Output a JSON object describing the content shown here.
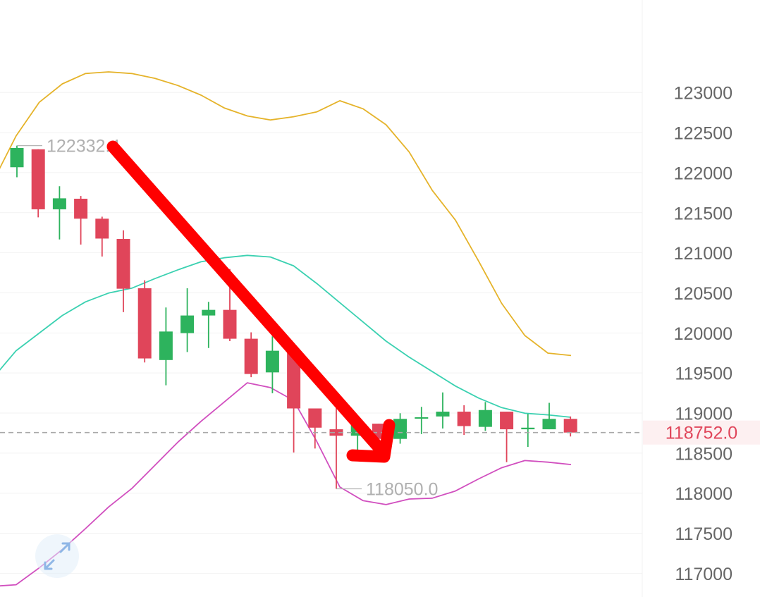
{
  "chart_data": {
    "type": "candlestick",
    "ylim": [
      116700,
      124150
    ],
    "y_ticks": [
      "123000",
      "122500",
      "122000",
      "121500",
      "121000",
      "120500",
      "120000",
      "119500",
      "119000",
      "118500",
      "118000",
      "117500",
      "117000"
    ],
    "grid": true,
    "current_price": {
      "value": 118752.0,
      "label": "118752.0"
    },
    "annotations": [
      {
        "label": "122332.4",
        "value": 122332.4,
        "candle_index": 0
      },
      {
        "label": "118050.0",
        "value": 118050.0,
        "candle_index": 15
      }
    ],
    "candles": [
      {
        "open": 122063,
        "high": 122332.4,
        "low": 121938,
        "close": 122303
      },
      {
        "open": 122287,
        "high": 122287,
        "low": 121438,
        "close": 121538
      },
      {
        "open": 121538,
        "high": 121826,
        "low": 121162,
        "close": 121675
      },
      {
        "open": 121670,
        "high": 121704,
        "low": 121098,
        "close": 121421
      },
      {
        "open": 121421,
        "high": 121446,
        "low": 120949,
        "close": 121173
      },
      {
        "open": 121168,
        "high": 121276,
        "low": 120255,
        "close": 120547
      },
      {
        "open": 120553,
        "high": 120653,
        "low": 119627,
        "close": 119677
      },
      {
        "open": 119657,
        "high": 120313,
        "low": 119342,
        "close": 120013
      },
      {
        "open": 119993,
        "high": 120553,
        "low": 119757,
        "close": 120213
      },
      {
        "open": 120213,
        "high": 120383,
        "low": 119807,
        "close": 120283
      },
      {
        "open": 120283,
        "high": 120793,
        "low": 119893,
        "close": 119923
      },
      {
        "open": 119923,
        "high": 120003,
        "low": 119443,
        "close": 119483
      },
      {
        "open": 119503,
        "high": 119953,
        "low": 119243,
        "close": 119773
      },
      {
        "open": 119773,
        "high": 119773,
        "low": 118503,
        "close": 119053
      },
      {
        "open": 119053,
        "high": 119053,
        "low": 118553,
        "close": 118813
      },
      {
        "open": 118793,
        "high": 119153,
        "low": 118050.0,
        "close": 118713
      },
      {
        "open": 118713,
        "high": 118893,
        "low": 118493,
        "close": 118853
      },
      {
        "open": 118863,
        "high": 118863,
        "low": 118673,
        "close": 118673
      },
      {
        "open": 118673,
        "high": 118993,
        "low": 118613,
        "close": 118923
      },
      {
        "open": 118943,
        "high": 119073,
        "low": 118733,
        "close": 118943
      },
      {
        "open": 118953,
        "high": 119253,
        "low": 118803,
        "close": 119013
      },
      {
        "open": 119013,
        "high": 119093,
        "low": 118723,
        "close": 118833
      },
      {
        "open": 118823,
        "high": 119133,
        "low": 118773,
        "close": 119033
      },
      {
        "open": 119013,
        "high": 119013,
        "low": 118383,
        "close": 118793
      },
      {
        "open": 118793,
        "high": 118983,
        "low": 118573,
        "close": 118813
      },
      {
        "open": 118793,
        "high": 119123,
        "low": 118793,
        "close": 118923
      },
      {
        "open": 118923,
        "high": 118953,
        "low": 118703,
        "close": 118752
      }
    ],
    "bands": {
      "upper": [
        121883,
        122453,
        122873,
        123103,
        123233,
        123253,
        123233,
        123173,
        123083,
        122963,
        122803,
        122703,
        122653,
        122693,
        122753,
        122893,
        122793,
        122593,
        122253,
        121773,
        121403,
        120893,
        120363,
        119963,
        119743,
        119713
      ],
      "middle": [
        119433,
        119773,
        119993,
        120213,
        120383,
        120493,
        120553,
        120673,
        120783,
        120883,
        120933,
        120963,
        120943,
        120833,
        120613,
        120373,
        120133,
        119893,
        119693,
        119513,
        119333,
        119183,
        119063,
        118993,
        118973,
        118943
      ],
      "lower": [
        116833,
        116853,
        117063,
        117293,
        117553,
        117823,
        118053,
        118343,
        118633,
        118893,
        119133,
        119373,
        119313,
        119153,
        118643,
        118073,
        117903,
        117853,
        117923,
        117933,
        118023,
        118173,
        118313,
        118403,
        118383,
        118353
      ]
    },
    "colors": {
      "up": "#2db35d",
      "down": "#e0455a",
      "upper_band": "#e5b32a",
      "middle_band": "#3bd1b1",
      "lower_band": "#d14fbf",
      "arrow": "#ff0000",
      "price_text": "#e0455a",
      "axis_text": "#666666"
    },
    "ui": {
      "expand_icon": "expand-icon"
    }
  }
}
